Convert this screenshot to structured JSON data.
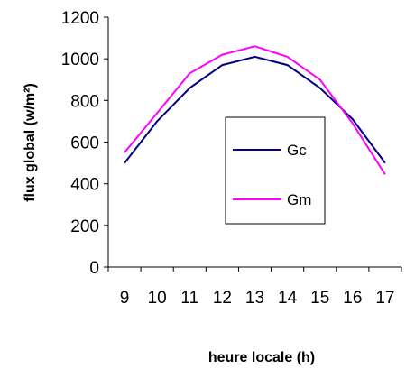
{
  "chart_data": {
    "type": "line",
    "title": "",
    "xlabel": "heure locale (h)",
    "ylabel": "flux global (w/m²)",
    "categories": [
      "9",
      "10",
      "11",
      "12",
      "13",
      "14",
      "15",
      "16",
      "17"
    ],
    "ylim": [
      0,
      1200
    ],
    "yticks": [
      0,
      200,
      400,
      600,
      800,
      1000,
      1200
    ],
    "grid": false,
    "legend_position": "center-right",
    "series": [
      {
        "name": "Gc",
        "color": "#000080",
        "values": [
          500,
          700,
          860,
          970,
          1010,
          970,
          860,
          710,
          500
        ]
      },
      {
        "name": "Gm",
        "color": "#ff00ff",
        "values": [
          550,
          740,
          930,
          1020,
          1060,
          1010,
          900,
          690,
          445
        ]
      }
    ]
  }
}
